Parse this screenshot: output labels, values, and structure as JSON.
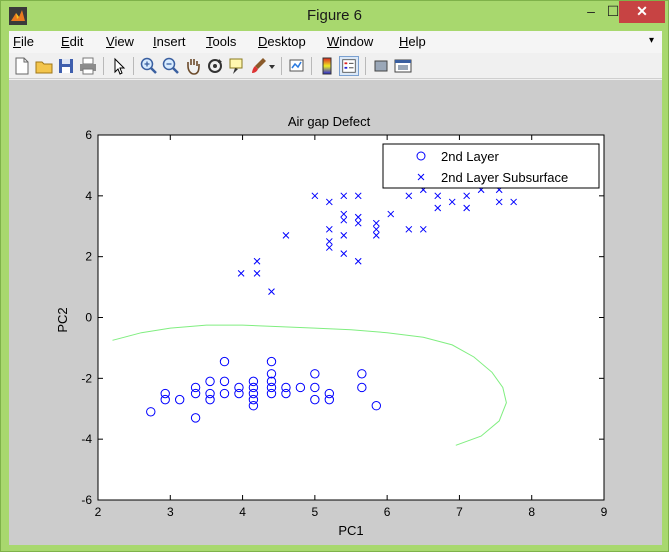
{
  "window": {
    "title": "Figure 6",
    "minimize_glyph": "–",
    "maximize_glyph": "☐",
    "close_glyph": "✕"
  },
  "menu": {
    "items": [
      {
        "label": "File",
        "underline": "F"
      },
      {
        "label": "Edit",
        "underline": "E"
      },
      {
        "label": "View",
        "underline": "V"
      },
      {
        "label": "Insert",
        "underline": "I"
      },
      {
        "label": "Tools",
        "underline": "T"
      },
      {
        "label": "Desktop",
        "underline": "D"
      },
      {
        "label": "Window",
        "underline": "W"
      },
      {
        "label": "Help",
        "underline": "H"
      }
    ],
    "overflow_glyph": "▾"
  },
  "toolbar": {
    "icons": [
      "new-figure-icon",
      "open-file-icon",
      "save-icon",
      "print-icon",
      "pointer-icon",
      "zoom-in-icon",
      "zoom-out-icon",
      "pan-icon",
      "rotate-3d-icon",
      "data-cursor-icon",
      "brush-icon",
      "link-plot-icon",
      "colorbar-icon",
      "legend-icon",
      "hide-plot-tools-icon",
      "show-plot-tools-icon"
    ]
  },
  "chart_data": {
    "type": "scatter",
    "title": "Air gap Defect",
    "xlabel": "PC1",
    "ylabel": "PC2",
    "xlim": [
      2,
      9
    ],
    "ylim": [
      -6,
      6
    ],
    "xticks": [
      2,
      3,
      4,
      5,
      6,
      7,
      8,
      9
    ],
    "yticks": [
      -6,
      -4,
      -2,
      0,
      2,
      4,
      6
    ],
    "legend_position": "top-right",
    "series": [
      {
        "name": "2nd Layer",
        "marker": "circle",
        "color": "#0000ff",
        "points": [
          [
            2.73,
            -3.1
          ],
          [
            2.93,
            -2.5
          ],
          [
            2.93,
            -2.7
          ],
          [
            3.13,
            -2.7
          ],
          [
            3.35,
            -2.3
          ],
          [
            3.35,
            -2.5
          ],
          [
            3.35,
            -3.3
          ],
          [
            3.55,
            -2.1
          ],
          [
            3.55,
            -2.5
          ],
          [
            3.55,
            -2.7
          ],
          [
            3.75,
            -1.45
          ],
          [
            3.75,
            -2.1
          ],
          [
            3.75,
            -2.5
          ],
          [
            3.95,
            -2.3
          ],
          [
            3.95,
            -2.5
          ],
          [
            4.15,
            -2.1
          ],
          [
            4.15,
            -2.3
          ],
          [
            4.15,
            -2.5
          ],
          [
            4.15,
            -2.7
          ],
          [
            4.15,
            -2.9
          ],
          [
            4.4,
            -1.45
          ],
          [
            4.4,
            -1.85
          ],
          [
            4.4,
            -2.1
          ],
          [
            4.4,
            -2.3
          ],
          [
            4.4,
            -2.5
          ],
          [
            4.6,
            -2.3
          ],
          [
            4.6,
            -2.5
          ],
          [
            4.8,
            -2.3
          ],
          [
            5.0,
            -1.85
          ],
          [
            5.0,
            -2.3
          ],
          [
            5.0,
            -2.7
          ],
          [
            5.2,
            -2.5
          ],
          [
            5.2,
            -2.7
          ],
          [
            5.65,
            -1.85
          ],
          [
            5.65,
            -2.3
          ],
          [
            5.85,
            -2.9
          ]
        ]
      },
      {
        "name": "2nd Layer Subsurface",
        "marker": "x",
        "color": "#0000ff",
        "points": [
          [
            3.98,
            1.45
          ],
          [
            4.2,
            1.45
          ],
          [
            4.2,
            1.85
          ],
          [
            4.4,
            0.85
          ],
          [
            4.6,
            2.7
          ],
          [
            5.0,
            4.0
          ],
          [
            5.2,
            3.8
          ],
          [
            5.2,
            2.9
          ],
          [
            5.2,
            2.5
          ],
          [
            5.2,
            2.3
          ],
          [
            5.4,
            4.0
          ],
          [
            5.4,
            3.4
          ],
          [
            5.4,
            3.2
          ],
          [
            5.4,
            2.7
          ],
          [
            5.4,
            2.1
          ],
          [
            5.6,
            4.0
          ],
          [
            5.6,
            3.3
          ],
          [
            5.6,
            3.1
          ],
          [
            5.6,
            1.85
          ],
          [
            5.85,
            3.1
          ],
          [
            5.85,
            2.9
          ],
          [
            5.85,
            2.7
          ],
          [
            6.05,
            3.4
          ],
          [
            6.3,
            4.0
          ],
          [
            6.3,
            2.9
          ],
          [
            6.5,
            4.2
          ],
          [
            6.5,
            2.9
          ],
          [
            6.7,
            4.0
          ],
          [
            6.7,
            3.6
          ],
          [
            6.9,
            3.8
          ],
          [
            7.1,
            4.0
          ],
          [
            7.1,
            3.6
          ],
          [
            7.3,
            4.2
          ],
          [
            7.55,
            4.2
          ],
          [
            7.55,
            3.8
          ],
          [
            7.75,
            3.8
          ]
        ]
      }
    ],
    "boundary": {
      "color": "#80ee80",
      "points": [
        [
          2.2,
          -0.75
        ],
        [
          2.6,
          -0.5
        ],
        [
          3.0,
          -0.35
        ],
        [
          3.5,
          -0.25
        ],
        [
          4.0,
          -0.25
        ],
        [
          4.5,
          -0.3
        ],
        [
          5.0,
          -0.35
        ],
        [
          5.5,
          -0.4
        ],
        [
          6.0,
          -0.5
        ],
        [
          6.5,
          -0.65
        ],
        [
          6.9,
          -0.9
        ],
        [
          7.2,
          -1.3
        ],
        [
          7.45,
          -1.8
        ],
        [
          7.6,
          -2.3
        ],
        [
          7.65,
          -2.8
        ],
        [
          7.55,
          -3.4
        ],
        [
          7.3,
          -3.9
        ],
        [
          6.95,
          -4.2
        ]
      ]
    }
  }
}
